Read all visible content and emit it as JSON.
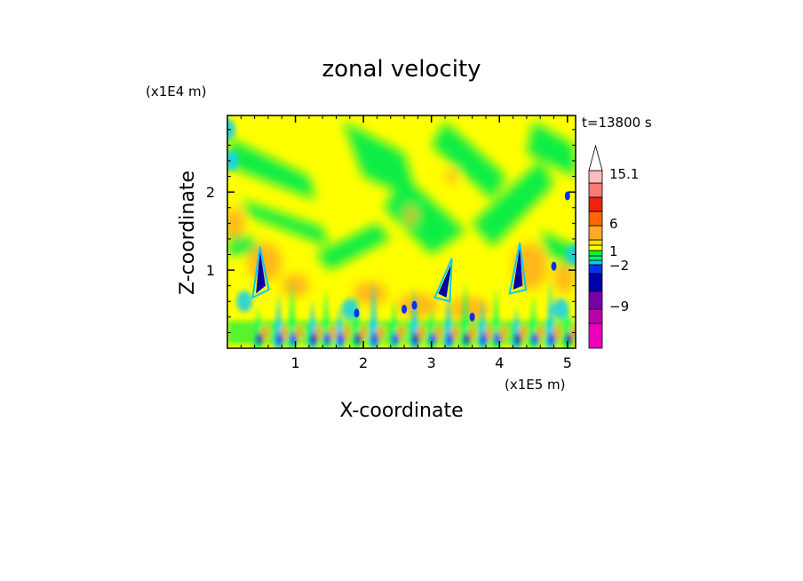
{
  "chart_data": {
    "type": "heatmap",
    "title": "zonal velocity",
    "xlabel": "X-coordinate",
    "ylabel": "Z-coordinate",
    "x_unit": "(x1E5 m)",
    "y_unit": "(x1E4 m)",
    "time_label": "t=13800 s",
    "xlim": [
      0,
      5.12
    ],
    "ylim": [
      0,
      2.98
    ],
    "x_ticks": [
      "1",
      "2",
      "3",
      "4",
      "5"
    ],
    "y_ticks": [
      "1",
      "2"
    ],
    "x_tick_values": [
      1,
      2,
      3,
      4,
      5
    ],
    "y_tick_values": [
      1,
      2
    ],
    "colorbar": {
      "labels": [
        {
          "text": "15.1",
          "value": 15.1
        },
        {
          "text": "6",
          "value": 6
        },
        {
          "text": "1",
          "value": 1
        },
        {
          "text": "−2",
          "value": -2
        },
        {
          "text": "−9",
          "value": -9
        }
      ],
      "levels": [
        -15,
        -12,
        -9,
        -6,
        -4,
        -2,
        -1,
        0,
        1,
        2,
        3,
        6,
        9,
        12,
        15.1
      ],
      "colors": [
        "#ee00bb",
        "#bb00aa",
        "#7700aa",
        "#0000aa",
        "#0033ee",
        "#00ccff",
        "#00ff66",
        "#11ee44",
        "#ffff00",
        "#ffdd00",
        "#ffaa22",
        "#ff6600",
        "#ee2211",
        "#ff7777",
        "#ffbbbb",
        "#ffffff"
      ]
    },
    "approx_field": {
      "description_free": true,
      "background_value": 0.5,
      "features": [
        {
          "x": 0.45,
          "z": 1.05,
          "value": -8
        },
        {
          "x": 3.25,
          "z": 0.9,
          "value": -6
        },
        {
          "x": 4.25,
          "z": 1.1,
          "value": -6
        },
        {
          "x": 0.55,
          "z": 1.1,
          "value": 4
        },
        {
          "x": 4.4,
          "z": 1.0,
          "value": 4
        }
      ]
    }
  }
}
